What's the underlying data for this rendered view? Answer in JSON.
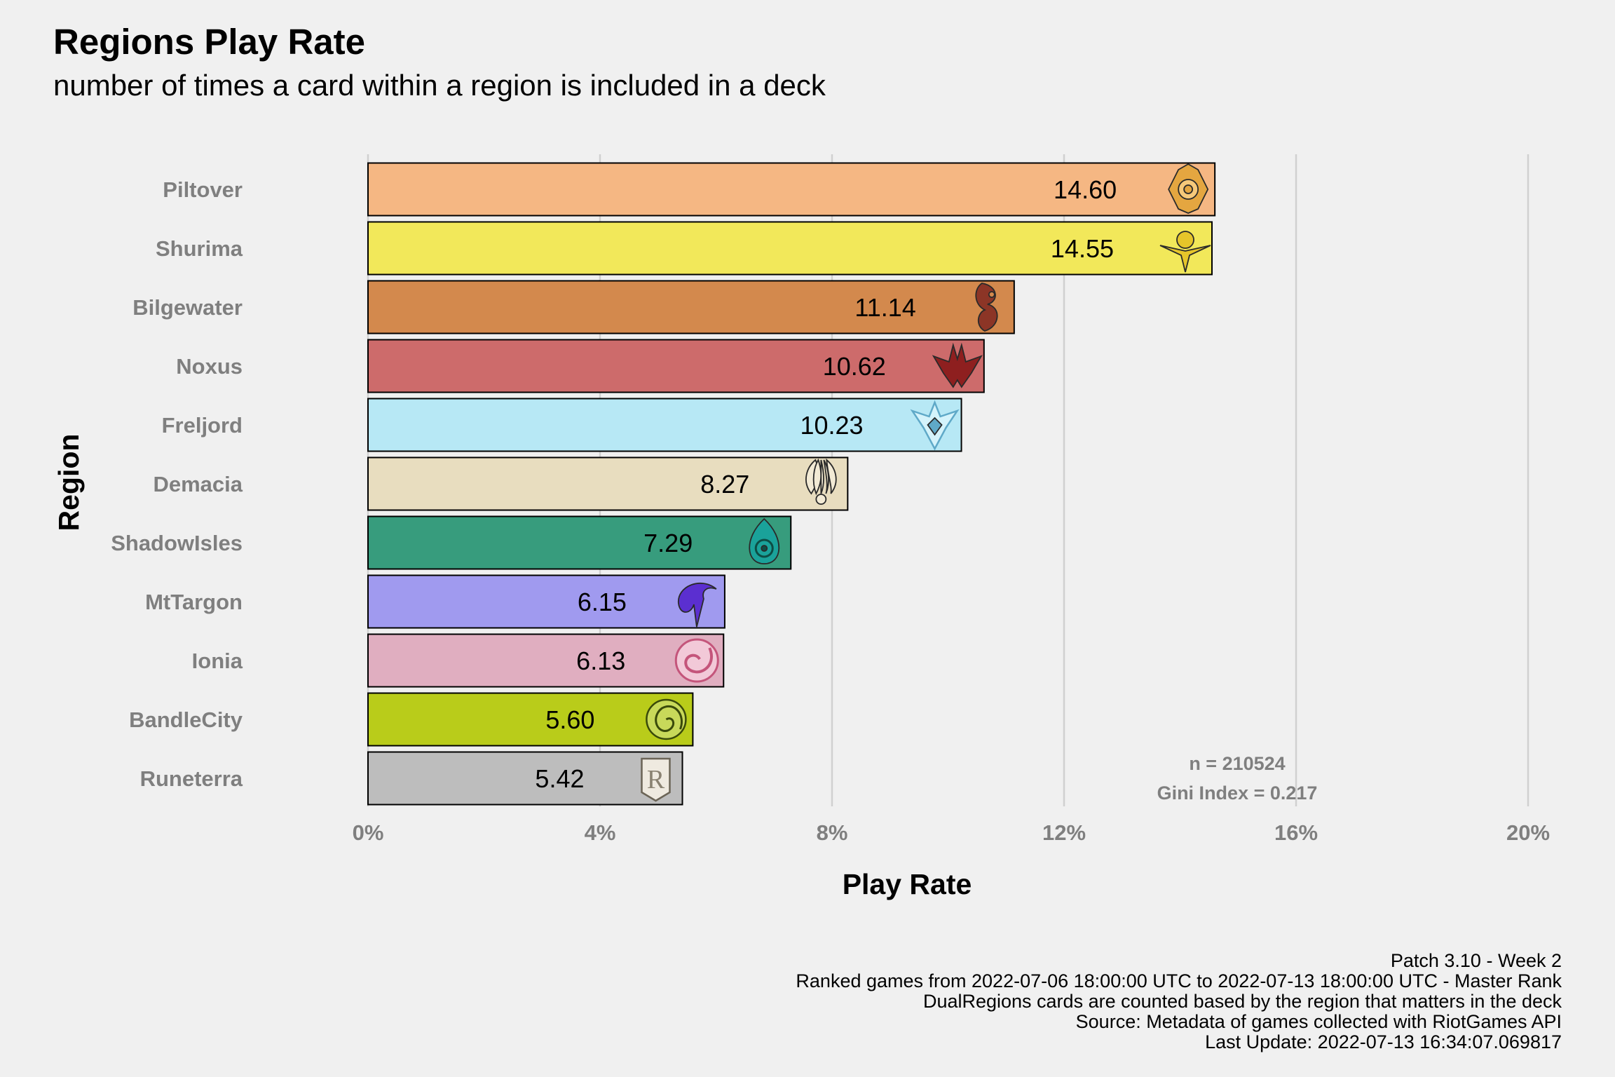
{
  "title": "Regions Play Rate",
  "subtitle": "number of times a card within a region is included in a deck",
  "chart_data": {
    "type": "bar",
    "orientation": "horizontal",
    "xlabel": "Play Rate",
    "ylabel": "Region",
    "xlim": [
      0,
      20
    ],
    "x_ticks": [
      "0%",
      "4%",
      "8%",
      "12%",
      "16%",
      "20%"
    ],
    "grid": "vertical major gridlines",
    "categories": [
      "Piltover",
      "Shurima",
      "Bilgewater",
      "Noxus",
      "Freljord",
      "Demacia",
      "ShadowIsles",
      "MtTargon",
      "Ionia",
      "BandleCity",
      "Runeterra"
    ],
    "values": [
      14.6,
      14.55,
      11.14,
      10.62,
      10.23,
      8.27,
      7.29,
      6.15,
      6.13,
      5.6,
      5.42
    ],
    "value_labels": [
      "14.60",
      "14.55",
      "11.14",
      "10.62",
      "10.23",
      "8.27",
      "7.29",
      "6.15",
      "6.13",
      "5.60",
      "5.42"
    ],
    "colors": [
      "#f5b783",
      "#f2e85a",
      "#d3894d",
      "#cd6b6b",
      "#b7e8f5",
      "#e8ddbf",
      "#379c7d",
      "#a09aef",
      "#e0aec0",
      "#b9cc1a",
      "#bdbdbd"
    ],
    "icon_names": [
      "piltover-icon",
      "shurima-icon",
      "bilgewater-icon",
      "noxus-icon",
      "freljord-icon",
      "demacia-icon",
      "shadow-isles-icon",
      "mt-targon-icon",
      "ionia-icon",
      "bandle-city-icon",
      "runeterra-icon"
    ],
    "icon_colors": [
      "#e4a640",
      "#e6c52a",
      "#8c3526",
      "#8e1f1f",
      "#5fa9c8",
      "#bca98a",
      "#1aa29a",
      "#5b2fd0",
      "#c4557b",
      "#7e8a1a",
      "#bdb8ae"
    ],
    "annotations": [
      "n = 210524",
      "Gini Index = 0.217"
    ]
  },
  "caption": [
    "Patch 3.10 - Week 2",
    "Ranked games from 2022-07-06 18:00:00 UTC to 2022-07-13 18:00:00 UTC - Master Rank",
    "DualRegions cards are counted based by the region that matters in the deck",
    "Source: Metadata of games collected with RiotGames API",
    "Last Update: 2022-07-13 16:34:07.069817"
  ]
}
